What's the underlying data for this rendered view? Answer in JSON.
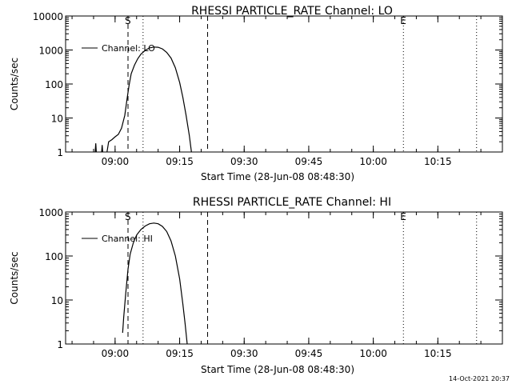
{
  "footer_timestamp": "14-Oct-2021 20:37",
  "chart_data": [
    {
      "type": "line",
      "title": "RHESSI PARTICLE_RATE Channel: LO",
      "xlabel": "Start Time (28-Jun-08 08:48:30)",
      "ylabel": "Counts/sec",
      "yscale": "log",
      "x_unit": "time (HH:MM)",
      "xlim": [
        "08:48:30",
        "10:30:00"
      ],
      "ylim": [
        1,
        10000
      ],
      "x_ticks": [
        "09:00",
        "09:15",
        "09:30",
        "09:45",
        "10:00",
        "10:15"
      ],
      "y_ticks": [
        "1",
        "10",
        "100",
        "1000",
        "10000"
      ],
      "legend": {
        "position": "top-left",
        "entries": [
          "Channel: LO"
        ]
      },
      "markers": [
        {
          "label": "",
          "time": "08:48:30",
          "style": "dotted"
        },
        {
          "label": "S",
          "time": "09:03:00",
          "style": "dashed"
        },
        {
          "label": "",
          "time": "09:06:30",
          "style": "dotted"
        },
        {
          "label": "",
          "time": "09:21:30",
          "style": "dashed"
        },
        {
          "label": "E",
          "time": "10:07:00",
          "style": "dotted"
        },
        {
          "label": "",
          "time": "10:24:00",
          "style": "dotted"
        }
      ],
      "series": [
        {
          "name": "Channel: LO",
          "points": [
            [
              "08:55:15",
              0.6
            ],
            [
              "08:55:30",
              1.8
            ],
            [
              "08:55:45",
              0.6
            ],
            [
              "08:56:45",
              0.6
            ],
            [
              "08:57:00",
              1.6
            ],
            [
              "08:57:15",
              0.6
            ],
            [
              "08:58:00",
              0.8
            ],
            [
              "08:58:30",
              2.0
            ],
            [
              "08:59:15",
              2.3
            ],
            [
              "09:00:00",
              2.8
            ],
            [
              "09:00:45",
              3.3
            ],
            [
              "09:01:30",
              5
            ],
            [
              "09:02:15",
              12
            ],
            [
              "09:02:45",
              35
            ],
            [
              "09:03:15",
              90
            ],
            [
              "09:03:45",
              200
            ],
            [
              "09:04:30",
              360
            ],
            [
              "09:05:15",
              550
            ],
            [
              "09:06:00",
              750
            ],
            [
              "09:07:00",
              980
            ],
            [
              "09:08:00",
              1150
            ],
            [
              "09:09:00",
              1220
            ],
            [
              "09:10:00",
              1200
            ],
            [
              "09:11:00",
              1080
            ],
            [
              "09:12:00",
              850
            ],
            [
              "09:13:00",
              580
            ],
            [
              "09:14:00",
              300
            ],
            [
              "09:15:00",
              110
            ],
            [
              "09:15:45",
              40
            ],
            [
              "09:16:30",
              12
            ],
            [
              "09:17:15",
              3
            ],
            [
              "09:17:45",
              1
            ]
          ]
        }
      ]
    },
    {
      "type": "line",
      "title": "RHESSI PARTICLE_RATE Channel: HI",
      "xlabel": "Start Time (28-Jun-08 08:48:30)",
      "ylabel": "Counts/sec",
      "yscale": "log",
      "x_unit": "time (HH:MM)",
      "xlim": [
        "08:48:30",
        "10:30:00"
      ],
      "ylim": [
        1,
        1000
      ],
      "x_ticks": [
        "09:00",
        "09:15",
        "09:30",
        "09:45",
        "10:00",
        "10:15"
      ],
      "y_ticks": [
        "1",
        "10",
        "100",
        "1000"
      ],
      "legend": {
        "position": "top-left",
        "entries": [
          "Channel: HI"
        ]
      },
      "markers": [
        {
          "label": "",
          "time": "08:48:30",
          "style": "dotted"
        },
        {
          "label": "S",
          "time": "09:03:00",
          "style": "dashed"
        },
        {
          "label": "",
          "time": "09:06:30",
          "style": "dotted"
        },
        {
          "label": "",
          "time": "09:21:30",
          "style": "dashed"
        },
        {
          "label": "E",
          "time": "10:07:00",
          "style": "dotted"
        },
        {
          "label": "",
          "time": "10:24:00",
          "style": "dotted"
        }
      ],
      "series": [
        {
          "name": "Channel: HI",
          "points": [
            [
              "09:01:45",
              1.8
            ],
            [
              "09:02:00",
              4
            ],
            [
              "09:02:30",
              15
            ],
            [
              "09:03:00",
              50
            ],
            [
              "09:03:30",
              110
            ],
            [
              "09:04:15",
              200
            ],
            [
              "09:05:00",
              300
            ],
            [
              "09:06:00",
              400
            ],
            [
              "09:07:00",
              480
            ],
            [
              "09:08:00",
              540
            ],
            [
              "09:09:00",
              560
            ],
            [
              "09:10:00",
              540
            ],
            [
              "09:11:00",
              470
            ],
            [
              "09:12:00",
              360
            ],
            [
              "09:13:00",
              220
            ],
            [
              "09:14:00",
              100
            ],
            [
              "09:15:00",
              30
            ],
            [
              "09:15:45",
              8
            ],
            [
              "09:16:15",
              3
            ],
            [
              "09:16:45",
              1
            ]
          ]
        }
      ]
    }
  ]
}
